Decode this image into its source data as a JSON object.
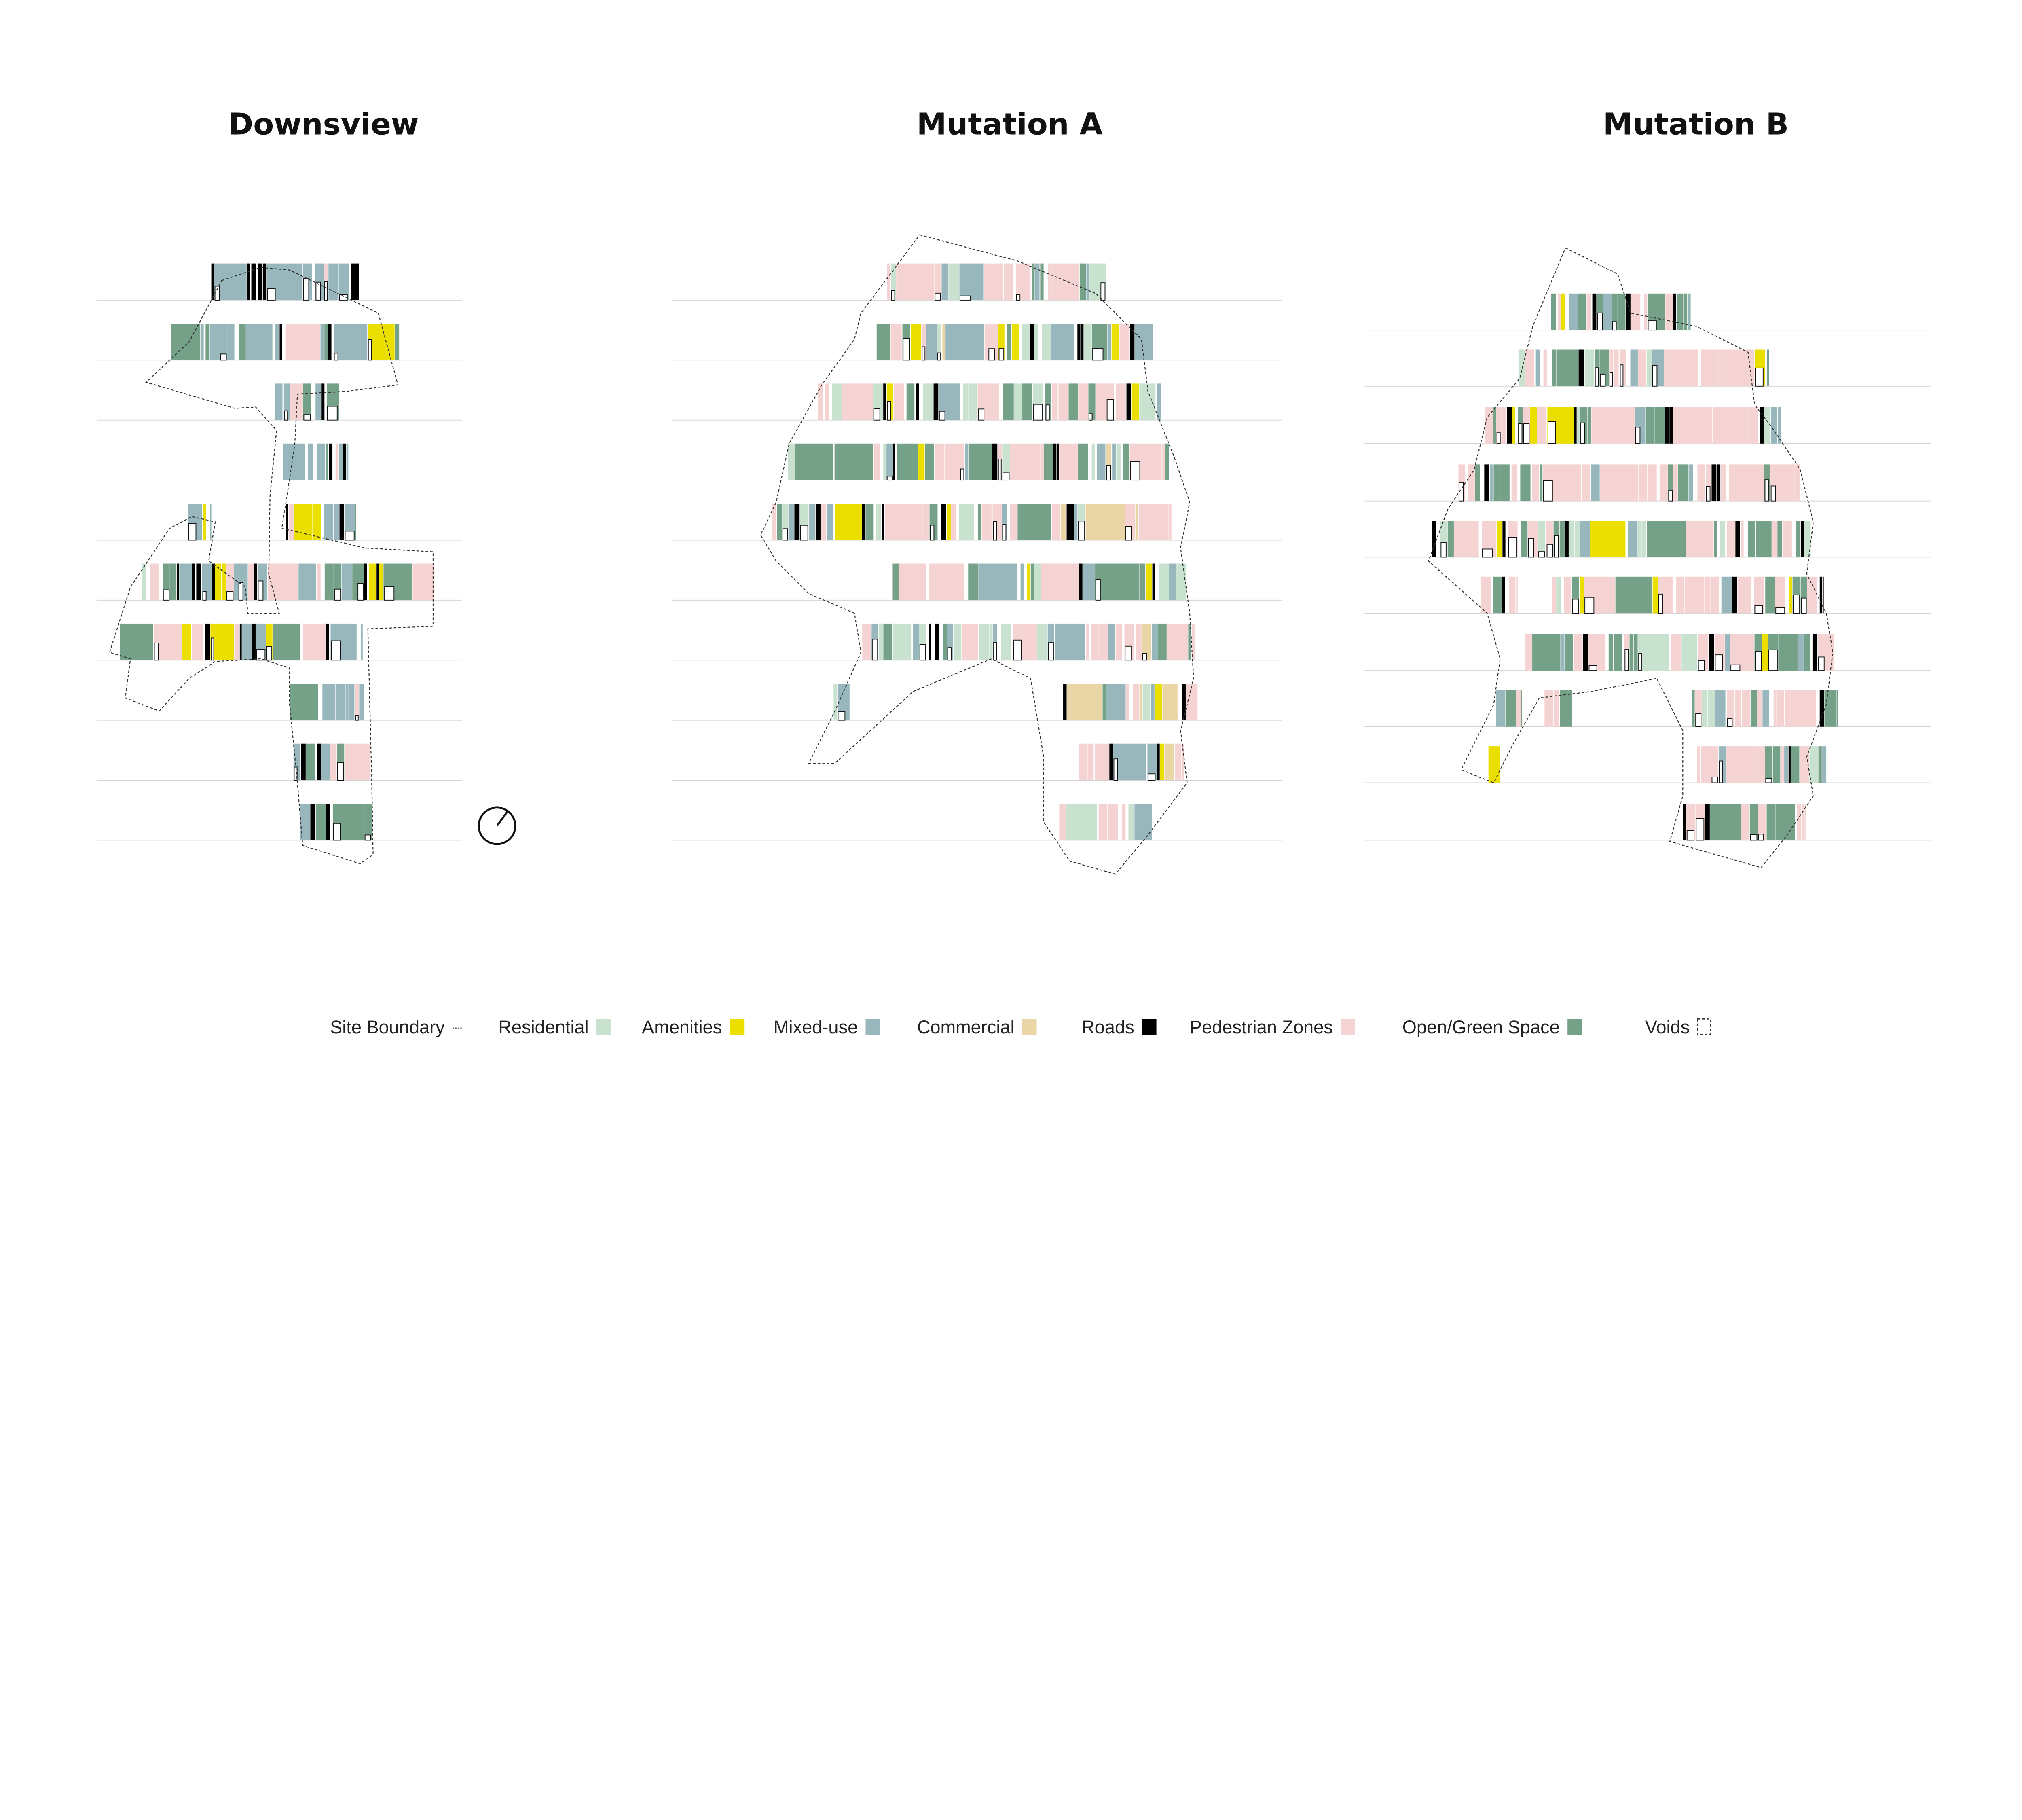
{
  "panels": [
    {
      "title": "Downsview"
    },
    {
      "title": "Mutation A"
    },
    {
      "title": "Mutation B"
    }
  ],
  "legend": [
    {
      "label": "Site Boundary",
      "key": "boundary",
      "color": "#555555"
    },
    {
      "label": "Residential",
      "key": "residential",
      "color": "#c8e2cf"
    },
    {
      "label": "Amenities",
      "key": "amenities",
      "color": "#ebdf00"
    },
    {
      "label": "Mixed-use",
      "key": "mixed",
      "color": "#97b7bc"
    },
    {
      "label": "Commercial",
      "key": "commercial",
      "color": "#ead5a6"
    },
    {
      "label": "Roads",
      "key": "roads",
      "color": "#000000"
    },
    {
      "label": "Pedestrian Zones",
      "key": "pedestrian",
      "color": "#f5d3d3"
    },
    {
      "label": "Open/Green Space",
      "key": "green",
      "color": "#76a189"
    },
    {
      "label": "Voids",
      "key": "voids",
      "color": "#ffffff"
    }
  ]
}
